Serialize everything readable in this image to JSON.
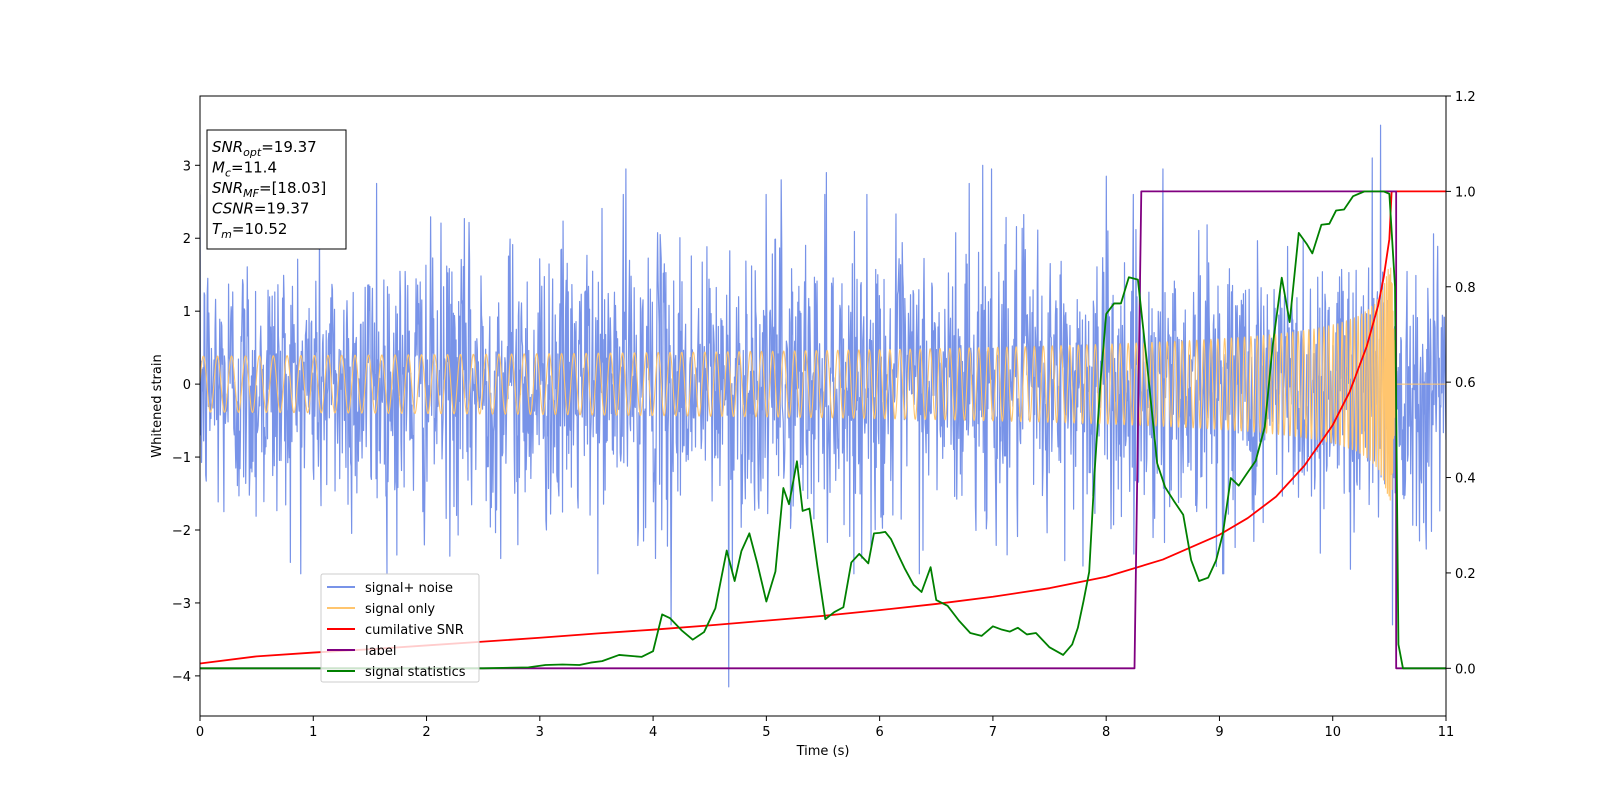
{
  "chart_data": {
    "type": "line",
    "xlabel": "Time (s)",
    "ylabel": "Whitened strain",
    "xlim": [
      0,
      11
    ],
    "ylim_left": [
      -4.55,
      3.95
    ],
    "ylim_right": [
      -0.1,
      1.2
    ],
    "x_ticks": [
      0,
      1,
      2,
      3,
      4,
      5,
      6,
      7,
      8,
      9,
      10,
      11
    ],
    "y_ticks_left": [
      -4,
      -3,
      -2,
      -1,
      0,
      1,
      2,
      3
    ],
    "y_ticks_right": [
      0.0,
      0.2,
      0.4,
      0.6,
      0.8,
      1.0,
      1.2
    ],
    "x_tick_labels": [
      "0",
      "1",
      "2",
      "3",
      "4",
      "5",
      "6",
      "7",
      "8",
      "9",
      "10",
      "11"
    ],
    "y_tick_labels_left": [
      "−4",
      "−3",
      "−2",
      "−1",
      "0",
      "1",
      "2",
      "3"
    ],
    "y_tick_labels_right": [
      "0.0",
      "0.2",
      "0.4",
      "0.6",
      "0.8",
      "1.0",
      "1.2"
    ],
    "grid": false,
    "legend_position": "lower-left",
    "info_box": [
      {
        "base": "SNR",
        "sub": "opt",
        "value": "=19.37"
      },
      {
        "base": "M",
        "sub": "c",
        "value": "=11.4"
      },
      {
        "base": "SNR",
        "sub": "MF",
        "value": "=[18.03]"
      },
      {
        "base": "CSNR",
        "sub": "",
        "value": "=19.37"
      },
      {
        "base": "T",
        "sub": "m",
        "value": "=10.52"
      }
    ],
    "series": [
      {
        "name": "signal+ noise",
        "color": "#7893e8",
        "axis": "left",
        "kind": "noise",
        "noise_std": 0.95,
        "x_range": [
          0,
          11
        ],
        "outliers": [
          [
            4.67,
            -4.15
          ],
          [
            4.16,
            -3.3
          ],
          [
            10.42,
            3.55
          ],
          [
            10.35,
            3.1
          ],
          [
            10.53,
            -3.3
          ],
          [
            1.56,
            2.75
          ],
          [
            5.13,
            2.8
          ],
          [
            5.53,
            2.9
          ],
          [
            6.79,
            2.75
          ],
          [
            6.99,
            2.95
          ],
          [
            6.91,
            3.0
          ],
          [
            8.5,
            2.95
          ],
          [
            8.0,
            2.85
          ],
          [
            3.76,
            2.95
          ]
        ]
      },
      {
        "name": "signal only",
        "color": "#ffc56e",
        "axis": "left",
        "kind": "chirp",
        "merger_time": 10.52,
        "end_time": 10.56,
        "peak": 2.9
      },
      {
        "name": "cumilative SNR",
        "color": "#ff0000",
        "axis": "right",
        "x": [
          0,
          0.5,
          1,
          1.5,
          2,
          2.5,
          3,
          3.5,
          4,
          4.5,
          5,
          5.5,
          6,
          6.5,
          7,
          7.5,
          8,
          8.5,
          9,
          9.25,
          9.5,
          9.75,
          10,
          10.15,
          10.3,
          10.4,
          10.45,
          10.5,
          10.52,
          11
        ],
        "y": [
          0.01,
          0.025,
          0.033,
          0.04,
          0.048,
          0.056,
          0.064,
          0.073,
          0.081,
          0.09,
          0.1,
          0.11,
          0.122,
          0.135,
          0.15,
          0.168,
          0.192,
          0.228,
          0.28,
          0.315,
          0.36,
          0.425,
          0.51,
          0.58,
          0.675,
          0.76,
          0.82,
          0.9,
          1.0,
          1.0
        ]
      },
      {
        "name": "label",
        "color": "#800080",
        "axis": "right",
        "x": [
          0,
          8.25,
          8.31,
          10.56,
          10.56,
          11
        ],
        "y": [
          0,
          0,
          1,
          1,
          0,
          0
        ]
      },
      {
        "name": "signal statistics",
        "color": "#008000",
        "axis": "right",
        "x": [
          0,
          1,
          2,
          2.5,
          2.9,
          3.05,
          3.2,
          3.35,
          3.45,
          3.55,
          3.7,
          3.9,
          4.0,
          4.08,
          4.15,
          4.25,
          4.35,
          4.45,
          4.55,
          4.65,
          4.72,
          4.78,
          4.85,
          4.92,
          5.0,
          5.08,
          5.15,
          5.2,
          5.27,
          5.32,
          5.38,
          5.45,
          5.52,
          5.6,
          5.68,
          5.75,
          5.82,
          5.9,
          5.95,
          6.0,
          6.05,
          6.1,
          6.17,
          6.22,
          6.3,
          6.37,
          6.45,
          6.5,
          6.6,
          6.7,
          6.8,
          6.9,
          7.0,
          7.08,
          7.15,
          7.22,
          7.3,
          7.38,
          7.5,
          7.62,
          7.7,
          7.75,
          7.8,
          7.85,
          7.9,
          7.95,
          8.0,
          8.07,
          8.13,
          8.2,
          8.28,
          8.36,
          8.45,
          8.52,
          8.6,
          8.68,
          8.75,
          8.82,
          8.9,
          8.97,
          9.03,
          9.1,
          9.17,
          9.25,
          9.32,
          9.4,
          9.47,
          9.55,
          9.62,
          9.7,
          9.77,
          9.82,
          9.9,
          9.97,
          10.03,
          10.1,
          10.18,
          10.28,
          10.38,
          10.45,
          10.5,
          10.55,
          10.58,
          10.62,
          10.7,
          11
        ],
        "y": [
          0,
          0,
          0,
          0,
          0.002,
          0.007,
          0.008,
          0.007,
          0.012,
          0.015,
          0.028,
          0.024,
          0.036,
          0.113,
          0.105,
          0.08,
          0.06,
          0.076,
          0.126,
          0.247,
          0.183,
          0.246,
          0.283,
          0.22,
          0.14,
          0.203,
          0.378,
          0.344,
          0.434,
          0.33,
          0.335,
          0.215,
          0.103,
          0.118,
          0.128,
          0.222,
          0.24,
          0.22,
          0.283,
          0.284,
          0.286,
          0.271,
          0.235,
          0.21,
          0.175,
          0.16,
          0.212,
          0.143,
          0.131,
          0.1,
          0.074,
          0.068,
          0.088,
          0.081,
          0.077,
          0.085,
          0.071,
          0.074,
          0.044,
          0.028,
          0.05,
          0.085,
          0.141,
          0.202,
          0.42,
          0.602,
          0.743,
          0.765,
          0.765,
          0.82,
          0.815,
          0.64,
          0.43,
          0.38,
          0.35,
          0.322,
          0.227,
          0.183,
          0.19,
          0.226,
          0.282,
          0.399,
          0.383,
          0.411,
          0.435,
          0.506,
          0.677,
          0.819,
          0.726,
          0.913,
          0.89,
          0.87,
          0.93,
          0.932,
          0.96,
          0.962,
          0.99,
          1.0,
          1.0,
          1.0,
          0.995,
          0.8,
          0.05,
          0.0,
          0.0,
          0.0
        ]
      }
    ]
  }
}
